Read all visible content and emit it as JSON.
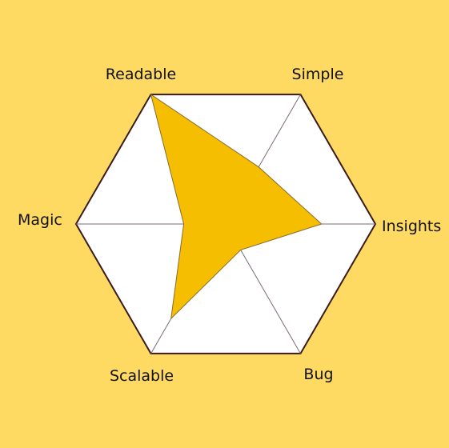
{
  "chart_data": {
    "type": "radar",
    "title": "",
    "axes": [
      "Readable",
      "Simple",
      "Insights",
      "Bug",
      "Scalable",
      "Magic"
    ],
    "range": [
      0,
      1
    ],
    "grid": false,
    "legend": "none",
    "series": [
      {
        "values": [
          1.0,
          0.44,
          0.64,
          0.2,
          0.73,
          0.28
        ]
      }
    ],
    "colors": {
      "background": "#FFDA63",
      "plot_area": "#FFFFFF",
      "frame": "#3A1A1A",
      "spokes": "#7B6A7A",
      "fill": "#F5BE00",
      "fill_outline": "#8A6A30",
      "label": "#111111"
    }
  }
}
